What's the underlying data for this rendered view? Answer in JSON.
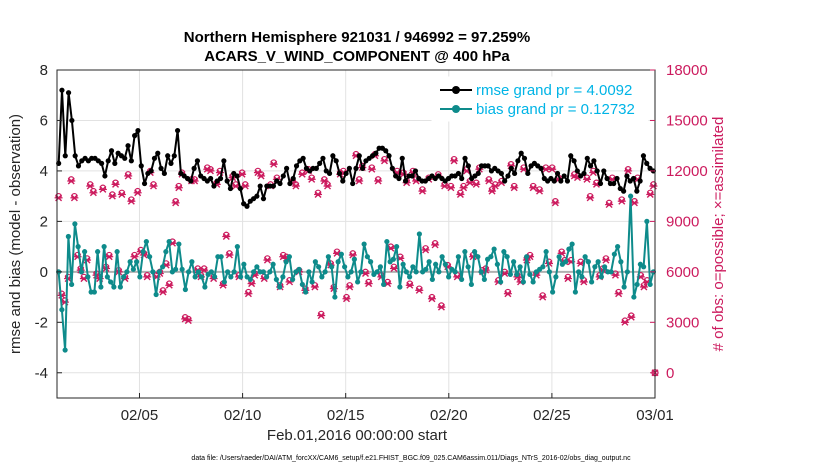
{
  "chart_data": {
    "type": "line",
    "title_line1": "Northern Hemisphere 921031 / 946992 = 97.259%",
    "title_line2": "ACARS_V_WIND_COMPONENT @ 400 hPa",
    "xlabel": "Feb.01,2016 00:00:00 start",
    "ylabel_left": "rmse and bias (model - observation)",
    "ylabel_right": "# of obs: o=possible; ×=assimilated",
    "x_tick_labels": [
      "02/05",
      "02/10",
      "02/15",
      "02/20",
      "02/25",
      "03/01"
    ],
    "x_tick_days": [
      4,
      9,
      14,
      19,
      24,
      29
    ],
    "x_range_days": [
      0,
      29
    ],
    "ylim_left": [
      -5,
      8
    ],
    "y_ticks_left": [
      "8",
      "6",
      "4",
      "2",
      "0",
      "-2",
      "-4"
    ],
    "y_ticks_left_values": [
      8,
      6,
      4,
      2,
      0,
      -2,
      -4
    ],
    "ylim_right": [
      -1500,
      18000
    ],
    "y_ticks_right": [
      "18000",
      "15000",
      "12000",
      "9000",
      "6000",
      "3000",
      "0"
    ],
    "y_ticks_right_values": [
      18000,
      15000,
      12000,
      9000,
      6000,
      3000,
      0
    ],
    "grid": true,
    "legend_position": "top-right",
    "zero_line": 0,
    "colors": {
      "rmse": "#000000",
      "bias": "#0e8b8b",
      "obs": "#cc1b5e",
      "legend_text": "#00b4e6",
      "right_axis": "#cc1b5e",
      "zero_line": "#b0b0b0",
      "grid": "#e2e2e2"
    },
    "series": [
      {
        "name": "rmse grand pr = 4.0092",
        "key": "rmse",
        "axis": "left",
        "values": [
          4.3,
          7.2,
          4.6,
          7.1,
          6.0,
          4.6,
          4.2,
          4.4,
          4.5,
          4.4,
          4.5,
          4.5,
          4.4,
          4.3,
          3.8,
          4.4,
          4.8,
          4.3,
          4.7,
          4.6,
          4.5,
          5.0,
          4.4,
          5.4,
          5.6,
          4.2,
          3.5,
          3.9,
          4.0,
          4.5,
          4.7,
          4.1,
          3.9,
          4.6,
          4.3,
          4.6,
          5.6,
          3.9,
          3.8,
          3.7,
          3.6,
          4.1,
          4.4,
          3.8,
          3.7,
          3.6,
          3.7,
          3.4,
          3.6,
          3.7,
          4.4,
          3.6,
          3.3,
          3.9,
          3.8,
          3.3,
          2.7,
          2.6,
          2.8,
          2.9,
          3.0,
          3.4,
          2.9,
          3.4,
          3.4,
          3.4,
          3.6,
          3.5,
          3.8,
          4.1,
          3.5,
          3.7,
          4.2,
          4.4,
          4.5,
          4.1,
          4.0,
          4.1,
          4.1,
          4.3,
          4.5,
          4.0,
          3.9,
          4.6,
          4.4,
          3.9,
          3.6,
          3.9,
          4.1,
          3.5,
          4.1,
          4.6,
          4.1,
          4.4,
          4.5,
          4.6,
          4.7,
          4.9,
          4.9,
          4.8,
          4.6,
          4.1,
          3.8,
          3.7,
          4.5,
          3.6,
          3.8,
          3.8,
          4.0,
          3.7,
          3.6,
          3.6,
          3.7,
          3.8,
          3.7,
          3.8,
          3.7,
          3.6,
          3.7,
          3.8,
          3.8,
          3.9,
          3.7,
          4.5,
          4.2,
          3.7,
          3.8,
          3.9,
          4.2,
          4.2,
          4.2,
          4.0,
          4.1,
          4.0,
          3.9,
          3.6,
          3.8,
          4.1,
          3.9,
          4.4,
          4.7,
          4.5,
          3.9,
          4.2,
          4.3,
          4.2,
          4.1,
          3.7,
          3.6,
          3.7,
          3.6,
          3.9,
          3.6,
          3.8,
          3.6,
          4.6,
          4.4,
          4.0,
          3.8,
          3.9,
          4.5,
          4.2,
          4.4,
          4.0,
          3.5,
          4.0,
          3.7,
          3.5,
          3.5,
          3.7,
          3.3,
          3.2,
          3.8,
          3.6,
          3.7,
          3.2,
          3.6,
          4.6,
          4.3,
          4.1,
          4.0
        ]
      },
      {
        "name": "bias grand pr = 0.12732",
        "key": "bias",
        "axis": "left",
        "values": [
          0.0,
          -1.5,
          -3.1,
          1.4,
          -0.5,
          1.9,
          1.0,
          0.0,
          0.8,
          -0.2,
          -0.8,
          -0.8,
          0.8,
          -0.6,
          1.0,
          -0.2,
          -0.4,
          -0.6,
          0.8,
          -0.6,
          -0.2,
          0.0,
          0.4,
          0.1,
          0.4,
          -0.2,
          0.8,
          1.2,
          0.6,
          0.0,
          -0.9,
          0.0,
          0.2,
          0.8,
          1.2,
          0.0,
          0.1,
          1.1,
          0.1,
          -0.7,
          0.0,
          0.4,
          -0.2,
          0.0,
          -0.2,
          -0.6,
          -0.1,
          0.0,
          -0.2,
          0.6,
          0.6,
          -0.4,
          0.0,
          -0.2,
          0.0,
          1.0,
          -0.2,
          0.3,
          -0.2,
          -0.3,
          0.0,
          0.2,
          0.0,
          0.0,
          -0.2,
          0.0,
          0.3,
          -0.3,
          -0.6,
          -0.2,
          0.4,
          0.6,
          -0.3,
          0.0,
          0.1,
          -0.5,
          -0.8,
          0.0,
          -0.4,
          0.4,
          0.2,
          -0.2,
          0.0,
          0.6,
          0.2,
          -1.0,
          0.4,
          0.7,
          0.2,
          -0.2,
          0.0,
          0.5,
          -0.4,
          0.0,
          1.1,
          0.6,
          0.4,
          -0.1,
          0.0,
          0.2,
          -0.5,
          1.2,
          0.4,
          0.5,
          1.0,
          -0.6,
          0.3,
          0.0,
          -0.2,
          0.2,
          0.0,
          1.5,
          0.0,
          0.1,
          0.4,
          -0.3,
          0.3,
          0.0,
          0.6,
          0.3,
          -0.2,
          0.1,
          0.0,
          0.6,
          -0.3,
          0.8,
          0.2,
          -0.5,
          0.8,
          0.6,
          0.0,
          -0.3,
          0.5,
          0.6,
          0.9,
          0.3,
          -0.4,
          0.8,
          0.6,
          -0.1,
          0.4,
          -0.1,
          0.2,
          -0.4,
          0.6,
          -0.1,
          -0.4,
          0.0,
          0.1,
          0.2,
          0.8,
          0.0,
          -0.8,
          -0.2,
          0.6,
          0.3,
          0.4,
          0.9,
          1.1,
          -0.8,
          0.0,
          -0.2,
          0.6,
          0.4,
          -0.4,
          0.2,
          0.4,
          -0.2,
          0.2,
          0.0,
          0.0,
          0.7,
          1.0,
          0.4,
          -0.6,
          0.0,
          3.0,
          -1.0,
          -0.5,
          0.3,
          0.2,
          2.0,
          -0.5,
          0.0
        ]
      },
      {
        "name": "",
        "key": "obs_possible",
        "axis": "right",
        "marker": "o",
        "values": [
          10500,
          4700,
          4300,
          5700,
          11500,
          10500,
          7000,
          6200,
          5700,
          6800,
          11200,
          10800,
          5900,
          5700,
          11000,
          6300,
          7000,
          10600,
          11300,
          6100,
          10700,
          5700,
          11800,
          10300,
          7000,
          10800,
          7300,
          7100,
          5800,
          12000,
          11200,
          5800,
          6000,
          4900,
          6500,
          5300,
          7800,
          10200,
          11100,
          11900,
          3300,
          3200,
          11500,
          11500,
          6200,
          5800,
          6200,
          12200,
          12100,
          5700,
          11300,
          12000,
          5300,
          8200,
          7100,
          11700,
          11200,
          5800,
          11900,
          11200,
          4800,
          5400,
          5900,
          12000,
          11800,
          5700,
          6800,
          11200,
          12500,
          11600,
          5200,
          7000,
          6900,
          5500,
          11400,
          11200,
          6100,
          11900,
          5000,
          12100,
          11600,
          5200,
          10700,
          3500,
          11500,
          11200,
          6500,
          5100,
          7200,
          11900,
          12000,
          4500,
          5200,
          7100,
          13000,
          11500,
          12300,
          6000,
          5400,
          12200,
          13000,
          11500,
          5800,
          12700,
          5400,
          7500,
          6300,
          12000,
          6900,
          11900,
          11400,
          5300,
          12000,
          11500,
          5000,
          10900,
          7400,
          11600,
          4500,
          7700,
          11800,
          4000,
          11200,
          6400,
          11100,
          12700,
          5800,
          10700,
          11100,
          12100,
          11400,
          7000,
          11300,
          12200,
          6100,
          6200,
          11500,
          10900,
          11200,
          5500,
          11400,
          6000,
          4800,
          12400,
          11100,
          5800,
          5500,
          12200,
          6800,
          7000,
          11100,
          5900,
          10900,
          4600,
          12200,
          6600,
          12200,
          10200,
          11600,
          7200,
          6700,
          5700,
          6700,
          11800,
          11700,
          6600,
          5500,
          11600,
          10500,
          12000,
          11300,
          5800,
          6200,
          6800,
          10100,
          11600,
          5900,
          4800,
          10300,
          3100,
          12100,
          3400,
          10200,
          11600,
          5800,
          5200,
          5500,
          10700,
          11200
        ]
      },
      {
        "name": "",
        "key": "obs_assimilated",
        "axis": "right",
        "marker": "x",
        "values": [
          10400,
          4600,
          4200,
          5600,
          11400,
          10400,
          6900,
          6100,
          5600,
          6700,
          11100,
          10700,
          5800,
          5600,
          10900,
          6200,
          6900,
          10500,
          11200,
          6000,
          10600,
          5600,
          11700,
          10200,
          6900,
          10700,
          7200,
          7000,
          5700,
          11900,
          11100,
          5700,
          5900,
          4800,
          6400,
          5200,
          7700,
          10100,
          11000,
          11800,
          3200,
          3100,
          11400,
          11400,
          6100,
          5700,
          6100,
          12100,
          12000,
          5600,
          11200,
          11900,
          5200,
          8100,
          7000,
          11600,
          11100,
          5700,
          11800,
          11100,
          4700,
          5300,
          5800,
          11900,
          11700,
          5600,
          6700,
          11100,
          12400,
          11500,
          5100,
          6900,
          6800,
          5400,
          11300,
          11100,
          6000,
          11800,
          4900,
          12000,
          11500,
          5100,
          10600,
          3400,
          11400,
          11100,
          6400,
          5000,
          7100,
          11800,
          11900,
          4400,
          5100,
          7000,
          12900,
          11400,
          12200,
          5900,
          5300,
          12100,
          12900,
          11400,
          5700,
          12600,
          5300,
          7400,
          6200,
          11900,
          6800,
          11800,
          11300,
          5200,
          11900,
          11400,
          4900,
          10800,
          7300,
          11500,
          4400,
          7600,
          11700,
          3900,
          11100,
          6300,
          11000,
          12600,
          5700,
          10600,
          11000,
          12000,
          11300,
          6900,
          11200,
          12100,
          6000,
          6100,
          11400,
          10800,
          11100,
          5400,
          11300,
          5900,
          4700,
          12300,
          11000,
          5700,
          5400,
          12100,
          6700,
          6900,
          11000,
          5800,
          10800,
          4500,
          12100,
          6500,
          12100,
          10100,
          11500,
          7100,
          6600,
          5600,
          6600,
          11700,
          11600,
          6500,
          5400,
          11500,
          10400,
          11900,
          11200,
          5700,
          6100,
          6700,
          10000,
          11500,
          5800,
          4700,
          10200,
          3000,
          12000,
          3300,
          10100,
          11500,
          5700,
          5100,
          5400,
          10600,
          11100
        ]
      }
    ],
    "x_end_marker_value": 0
  },
  "footer": {
    "data_file": "data file: /Users/raeder/DAI/ATM_forcXX/CAM6_setup/f.e21.FHIST_BGC.f09_025.CAM6assim.011/Diags_NTrS_2016-02/obs_diag_output.nc"
  }
}
